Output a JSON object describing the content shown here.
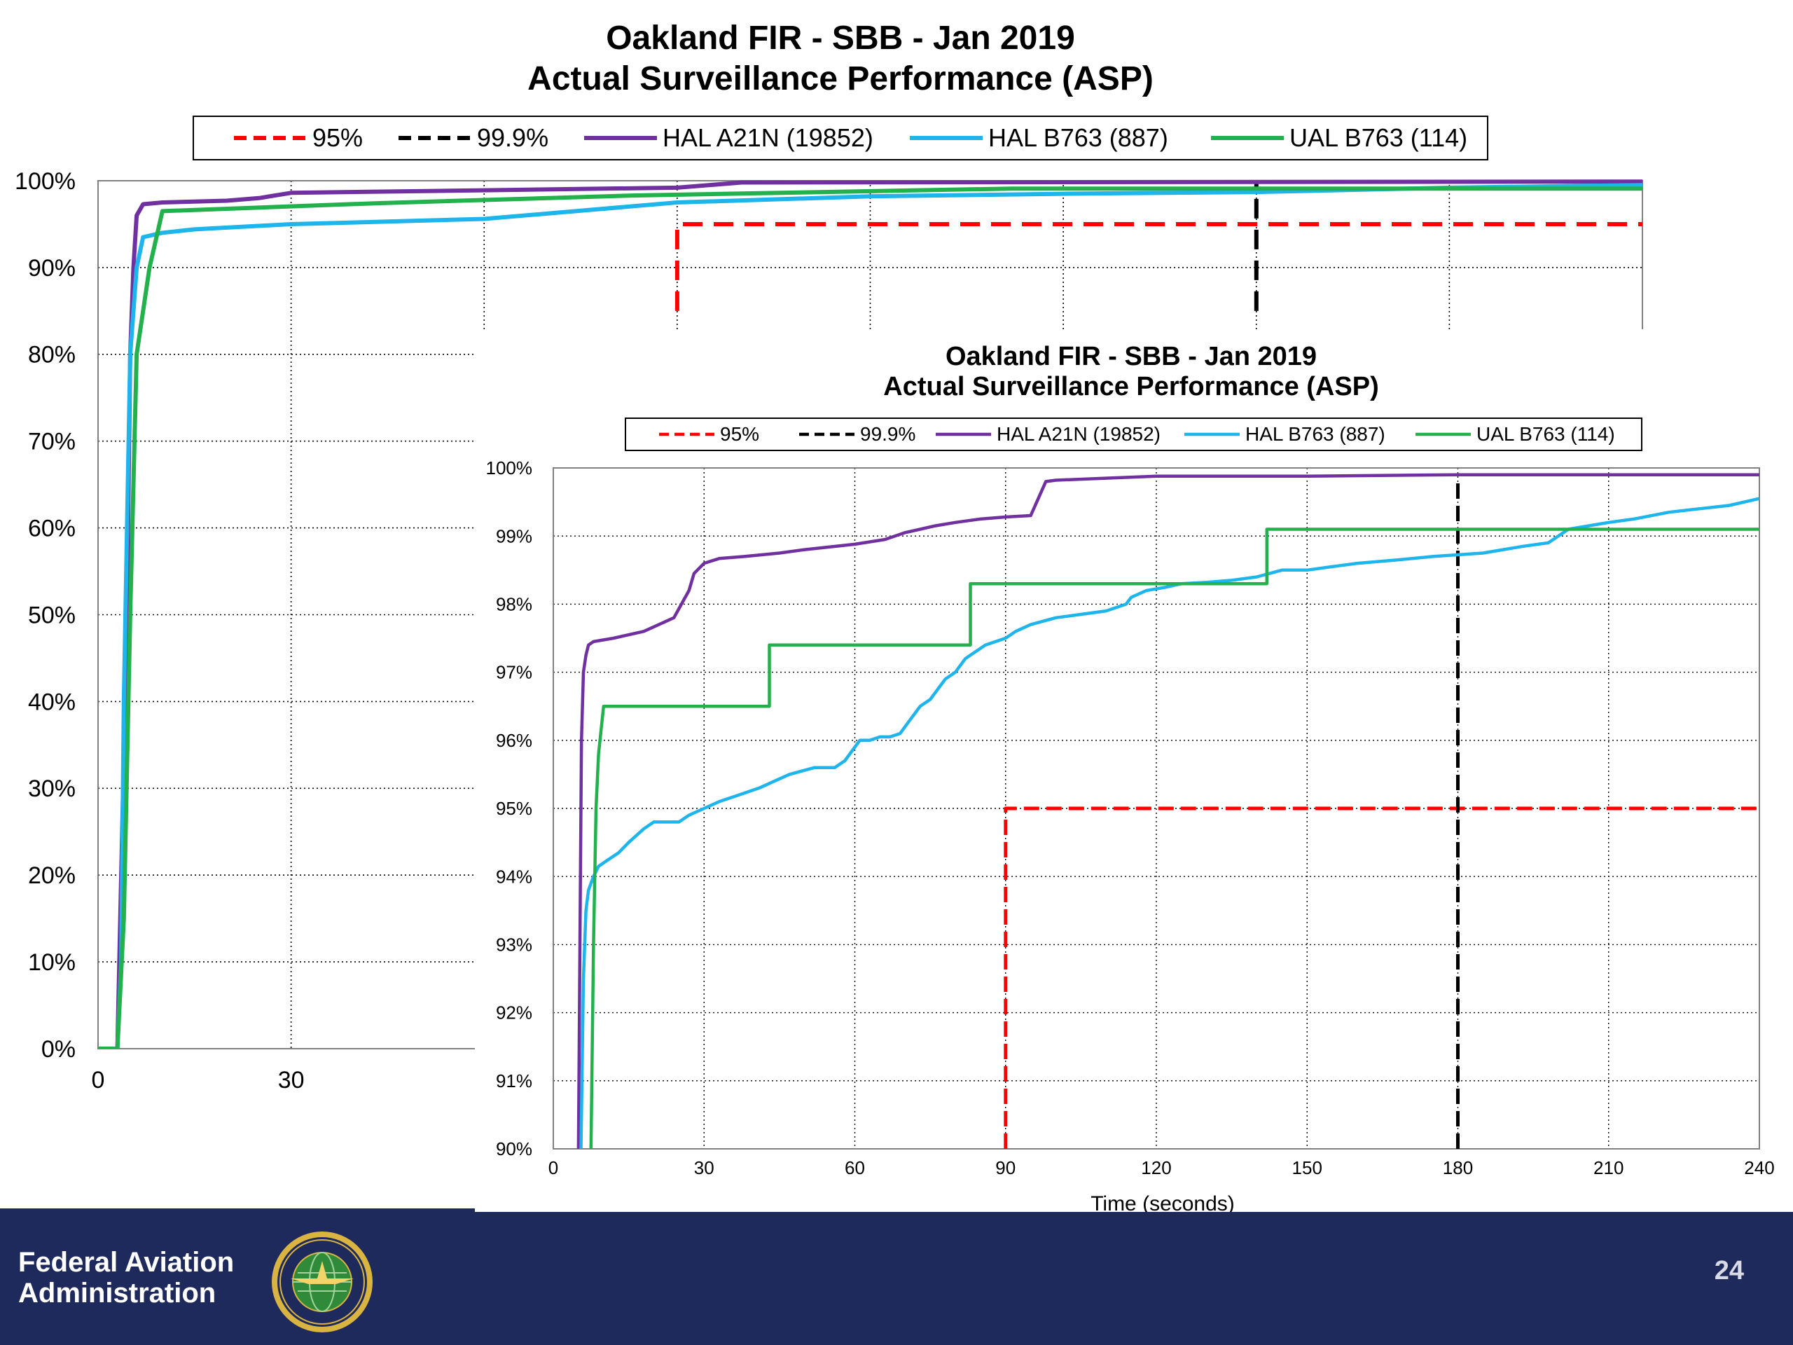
{
  "chart_data": [
    {
      "type": "line",
      "title": "Oakland FIR - SBB - Jan 2019",
      "subtitle": "Actual Surveillance Performance (ASP)",
      "xlabel": "",
      "ylabel": "",
      "xlim": [
        0,
        240
      ],
      "ylim": [
        0,
        100
      ],
      "x_ticks": [
        0,
        30,
        60,
        90,
        120,
        150,
        180,
        210,
        240
      ],
      "y_ticks": [
        0,
        10,
        20,
        30,
        40,
        50,
        60,
        70,
        80,
        90,
        100
      ],
      "y_tick_labels": [
        "0%",
        "10%",
        "20%",
        "30%",
        "40%",
        "50%",
        "60%",
        "70%",
        "80%",
        "90%",
        "100%"
      ],
      "visible_x_tick_labels": [
        "0",
        "30"
      ],
      "legend_position": "top",
      "grid": true,
      "series": [
        {
          "name": "95%",
          "style": "dashed",
          "color": "#ff0000",
          "x": [
            90,
            90,
            240
          ],
          "y": [
            85,
            95,
            95
          ]
        },
        {
          "name": "99.9%",
          "style": "dashed",
          "color": "#000000",
          "x": [
            180,
            180
          ],
          "y": [
            85,
            99.9
          ]
        },
        {
          "name": "HAL A21N (19852)",
          "color": "#7030a0",
          "x": [
            0,
            3,
            4.5,
            5,
            5.5,
            6,
            7,
            10,
            20,
            25,
            30,
            60,
            90,
            100,
            240
          ],
          "y": [
            0,
            0,
            50,
            80,
            90,
            96,
            97.3,
            97.5,
            97.7,
            98,
            98.6,
            98.9,
            99.2,
            99.8,
            99.9
          ]
        },
        {
          "name": "HAL B763 (887)",
          "color": "#1eb4ec",
          "x": [
            0,
            3,
            3.6,
            4,
            5,
            6,
            7,
            10,
            15,
            30,
            60,
            90,
            120,
            150,
            180,
            210,
            240
          ],
          "y": [
            0,
            0,
            10,
            40,
            80,
            90,
            93.5,
            94,
            94.4,
            95,
            95.6,
            97.5,
            98.2,
            98.5,
            98.7,
            99.2,
            99.5
          ]
        },
        {
          "name": "UAL B763 (114)",
          "color": "#22b14c",
          "x": [
            0,
            3,
            4,
            5,
            6,
            8,
            10,
            43,
            83,
            142,
            240
          ],
          "y": [
            0,
            0,
            15,
            50,
            80,
            90,
            96.5,
            97.4,
            98.3,
            99.1,
            99.1
          ]
        }
      ]
    },
    {
      "type": "line",
      "title": "Oakland FIR - SBB - Jan 2019",
      "subtitle": "Actual Surveillance Performance (ASP)",
      "xlabel": "Time (seconds)",
      "ylabel": "",
      "xlim": [
        0,
        240
      ],
      "ylim": [
        90,
        100
      ],
      "x_ticks": [
        0,
        30,
        60,
        90,
        120,
        150,
        180,
        210,
        240
      ],
      "y_ticks": [
        90,
        91,
        92,
        93,
        94,
        95,
        96,
        97,
        98,
        99,
        100
      ],
      "y_tick_labels": [
        "90%",
        "91%",
        "92%",
        "93%",
        "94%",
        "95%",
        "96%",
        "97%",
        "98%",
        "99%",
        "100%"
      ],
      "legend_position": "top",
      "grid": true,
      "series": [
        {
          "name": "95%",
          "style": "dashed",
          "color": "#ff0000",
          "x": [
            90,
            90,
            240
          ],
          "y": [
            90,
            95,
            95
          ]
        },
        {
          "name": "99.9%",
          "style": "dashed",
          "color": "#000000",
          "x": [
            180,
            180
          ],
          "y": [
            90,
            99.9
          ]
        },
        {
          "name": "HAL A21N (19852)",
          "color": "#7030a0",
          "x": [
            5,
            5.3,
            5.6,
            6,
            6.5,
            7,
            8,
            12,
            18,
            21,
            24,
            27,
            28,
            30,
            33,
            38,
            45,
            50,
            60,
            66,
            70,
            73,
            76,
            80,
            85,
            90,
            95,
            98,
            100,
            110,
            120,
            150,
            180,
            210,
            240
          ],
          "y": [
            90,
            93,
            96,
            97,
            97.25,
            97.4,
            97.45,
            97.5,
            97.6,
            97.7,
            97.8,
            98.2,
            98.45,
            98.6,
            98.67,
            98.7,
            98.75,
            98.8,
            98.88,
            98.95,
            99.05,
            99.1,
            99.15,
            99.2,
            99.25,
            99.28,
            99.3,
            99.8,
            99.82,
            99.85,
            99.88,
            99.88,
            99.9,
            99.9,
            99.9
          ]
        },
        {
          "name": "HAL B763 (887)",
          "color": "#1eb4ec",
          "x": [
            5.5,
            6,
            6.5,
            7,
            8,
            9,
            11,
            13,
            15,
            18,
            20,
            25,
            27,
            30,
            33,
            37,
            41,
            44,
            47,
            52,
            56,
            58,
            60,
            61,
            63,
            65,
            67,
            69,
            71,
            73,
            75,
            78,
            80,
            82,
            84,
            86,
            88,
            90,
            92,
            95,
            100,
            105,
            110,
            114,
            115,
            118,
            122,
            125,
            130,
            135,
            140,
            145,
            150,
            155,
            160,
            168,
            175,
            185,
            193,
            198,
            202,
            210,
            215,
            222,
            228,
            234,
            240
          ],
          "y": [
            90,
            92.5,
            93.5,
            93.8,
            94,
            94.15,
            94.25,
            94.35,
            94.5,
            94.7,
            94.8,
            94.8,
            94.9,
            95,
            95.1,
            95.2,
            95.3,
            95.4,
            95.5,
            95.6,
            95.6,
            95.7,
            95.9,
            96,
            96,
            96.05,
            96.05,
            96.1,
            96.3,
            96.5,
            96.6,
            96.9,
            97,
            97.2,
            97.3,
            97.4,
            97.45,
            97.5,
            97.6,
            97.7,
            97.8,
            97.85,
            97.9,
            98,
            98.1,
            98.2,
            98.25,
            98.3,
            98.32,
            98.35,
            98.4,
            98.5,
            98.5,
            98.55,
            98.6,
            98.65,
            98.7,
            98.75,
            98.85,
            98.9,
            99.1,
            99.2,
            99.25,
            99.35,
            99.4,
            99.45,
            99.55
          ]
        },
        {
          "name": "UAL B763 (114)",
          "color": "#22b14c",
          "x": [
            7.5,
            8,
            8.5,
            9,
            10,
            43,
            43,
            83,
            83,
            142,
            142,
            240
          ],
          "y": [
            90,
            93,
            95,
            95.8,
            96.5,
            96.5,
            97.4,
            97.4,
            98.3,
            98.3,
            99.1,
            99.1
          ]
        }
      ]
    }
  ],
  "footer": {
    "organization_line1": "Federal Aviation",
    "organization_line2": "Administration",
    "page_number": "24",
    "seal_icon": "faa-seal-icon",
    "background_color": "#1f2a5c"
  }
}
